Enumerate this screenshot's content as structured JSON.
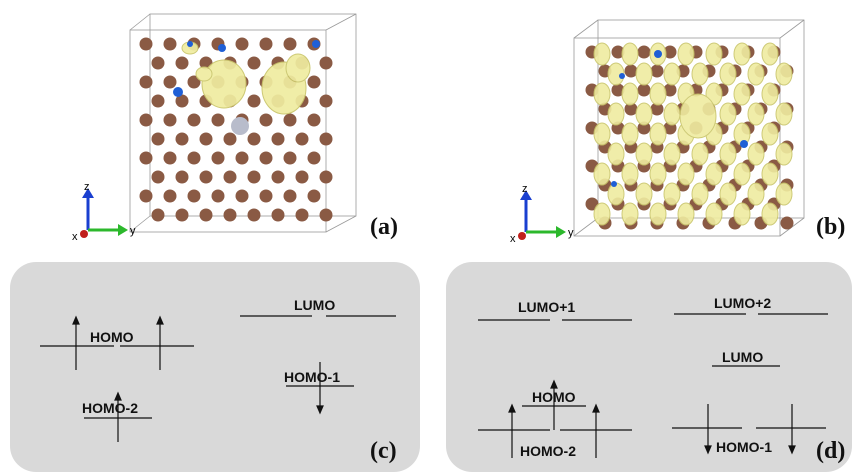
{
  "panels": {
    "a": {
      "label": "(a)"
    },
    "b": {
      "label": "(b)"
    },
    "c": {
      "label": "(c)"
    },
    "d": {
      "label": "(d)"
    }
  },
  "axes_glyph": {
    "z": "z",
    "y": "y",
    "x": "x"
  },
  "panel_c": {
    "homo": "HOMO",
    "lumo": "LUMO",
    "homo_1": "HOMO-1",
    "homo_2": "HOMO-2"
  },
  "panel_d": {
    "lumo_plus_1": "LUMO+1",
    "lumo_plus_2": "LUMO+2",
    "lumo": "LUMO",
    "homo": "HOMO",
    "homo_1": "HOMO-1",
    "homo_2": "HOMO-2"
  },
  "colors": {
    "atom": "#8a5a44",
    "bond": "#7a4a36",
    "isosurface": "#efeca0",
    "isosurface_edge": "#c9c56a",
    "cap": "#1f5fd6",
    "defect_atom": "#b8bccb",
    "panel_bg": "#d9d9d9"
  }
}
